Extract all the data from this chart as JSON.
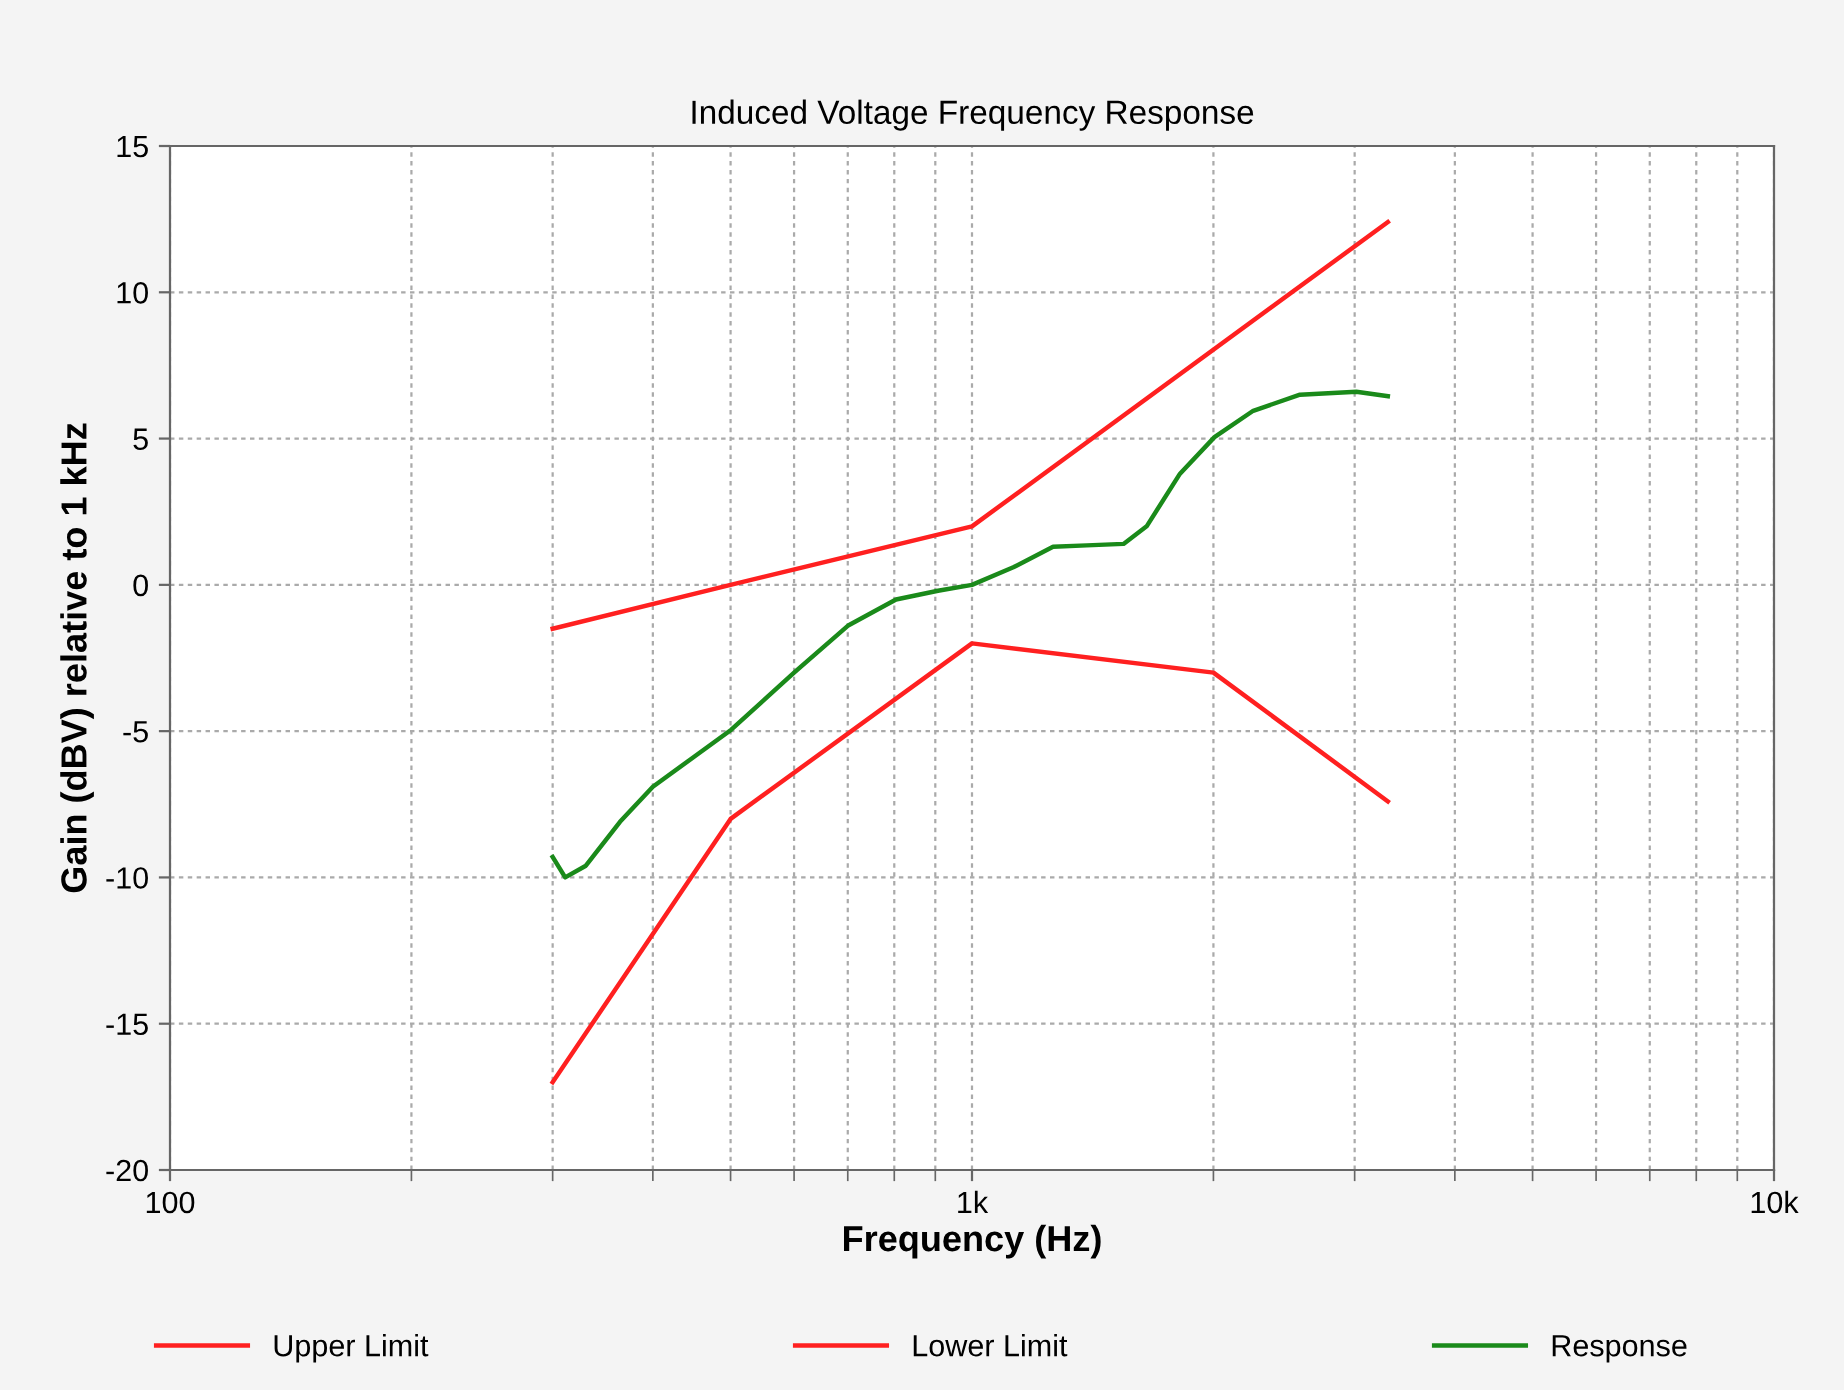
{
  "chart_data": {
    "type": "line",
    "title": "Induced Voltage Frequency Response",
    "xlabel": "Frequency (Hz)",
    "ylabel": "Gain (dBV) relative to 1 kHz",
    "log": "x",
    "xlim": [
      100,
      10000
    ],
    "xticks": [
      {
        "value": 100,
        "label": "100"
      },
      {
        "value": 1000,
        "label": "1k"
      },
      {
        "value": 10000,
        "label": "10k"
      }
    ],
    "ylim": [
      -20,
      15
    ],
    "yticks": [
      -20,
      -15,
      -10,
      -5,
      0,
      5,
      10,
      15
    ],
    "grid": true,
    "legend": "bottom",
    "line_style": "solid",
    "marker": "none",
    "series": [
      {
        "name": "Upper Limit",
        "color": "#ff2020",
        "x": [
          300,
          500,
          1000,
          3300
        ],
        "values": [
          -1.5,
          0,
          2,
          12.4
        ]
      },
      {
        "name": "Lower Limit",
        "color": "#ff2020",
        "x": [
          300,
          500,
          1000,
          2000,
          3300
        ],
        "values": [
          -17,
          -8,
          -2,
          -3,
          -7.4
        ]
      },
      {
        "name": "Response",
        "color": "#1a8a1a",
        "x": [
          300,
          311,
          330,
          364,
          400,
          449,
          501,
          600,
          700,
          804,
          907,
          1000,
          1126,
          1262,
          1390,
          1545,
          1651,
          1817,
          2006,
          2242,
          2564,
          3015,
          3300
        ],
        "values": [
          -9.3,
          -10.0,
          -9.6,
          -8.1,
          -6.9,
          -5.9,
          -4.95,
          -3.0,
          -1.4,
          -0.5,
          -0.2,
          0,
          0.6,
          1.3,
          1.35,
          1.4,
          2.0,
          3.8,
          5.05,
          5.95,
          6.5,
          6.6,
          6.45
        ]
      }
    ]
  }
}
